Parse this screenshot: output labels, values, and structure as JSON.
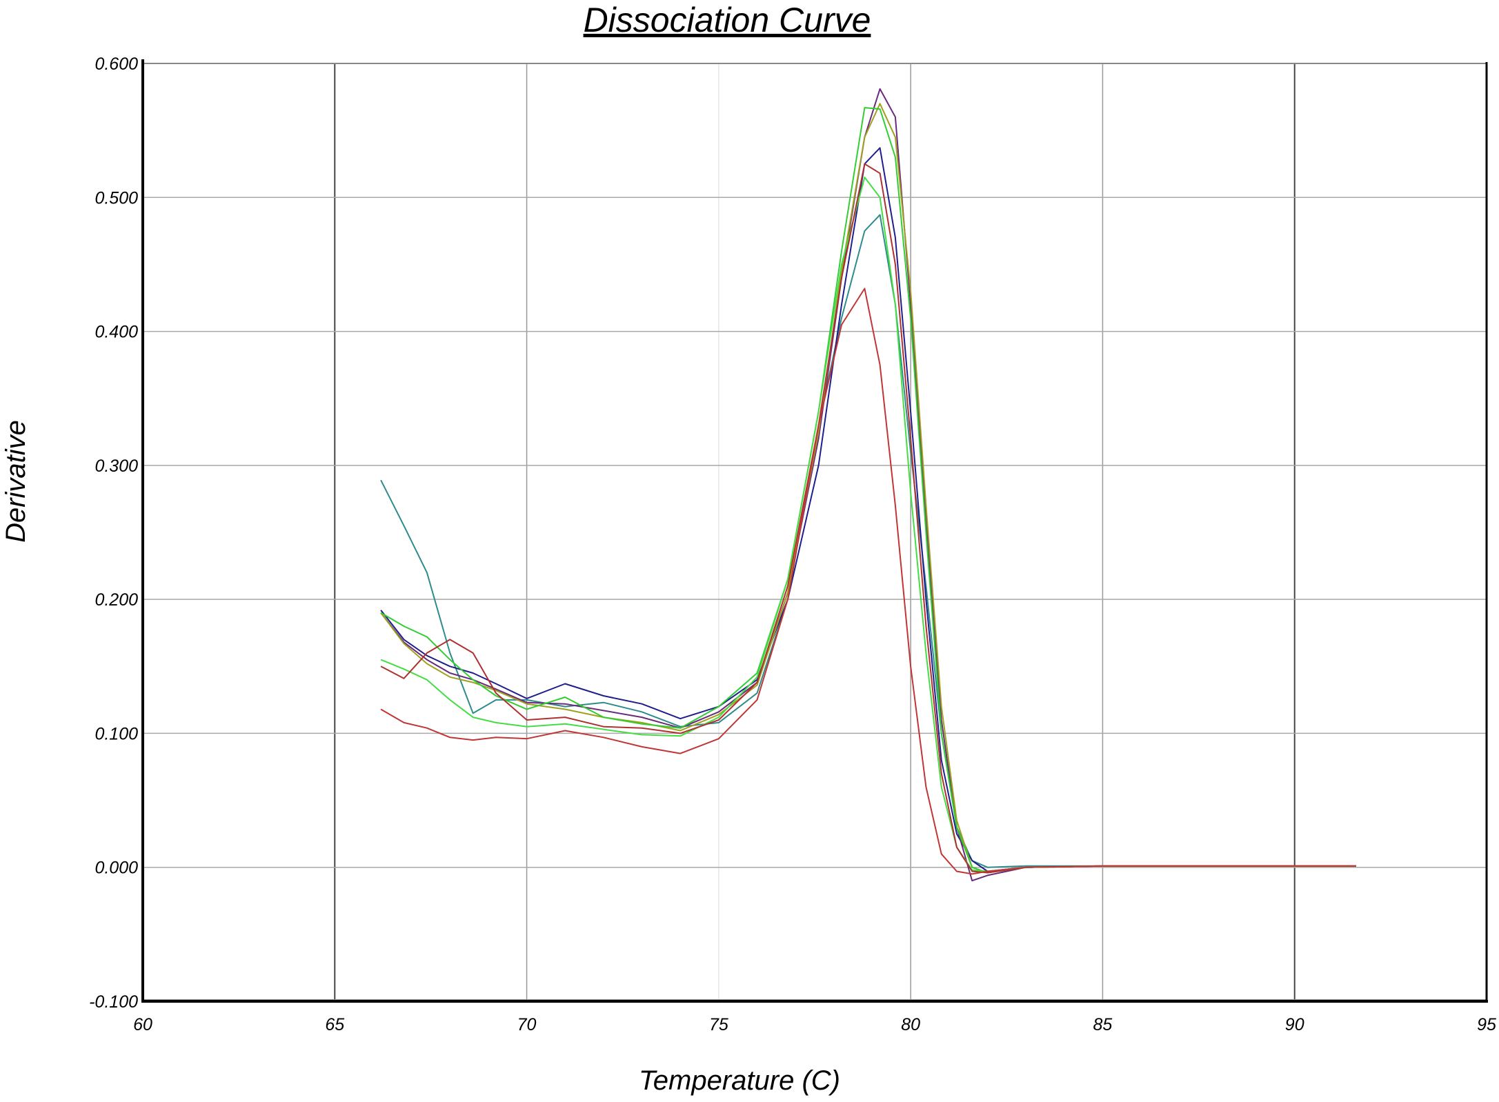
{
  "chart_data": {
    "type": "line",
    "title": "Dissociation Curve",
    "xlabel": "Temperature (C)",
    "ylabel": "Derivative",
    "xlim": [
      60,
      95
    ],
    "ylim": [
      -0.1,
      0.6
    ],
    "x_ticks": [
      "60",
      "65",
      "70",
      "75",
      "80",
      "85",
      "90",
      "95"
    ],
    "y_ticks": [
      "-0.100",
      "0.000",
      "0.100",
      "0.200",
      "0.300",
      "0.400",
      "0.500",
      "0.600"
    ],
    "grid": true,
    "legend": "none",
    "series": [
      {
        "color": "#2e8b8b",
        "x": [
          66.2,
          66.8,
          67.4,
          68.0,
          68.6,
          69.2,
          70.0,
          71.0,
          72.0,
          73.0,
          74.0,
          75.0,
          76.0,
          76.8,
          77.6,
          78.2,
          78.8,
          79.2,
          79.6,
          80.0,
          80.4,
          80.8,
          81.2,
          81.6,
          82.0,
          83.0,
          85.0,
          88.0,
          91.6
        ],
        "y": [
          0.289,
          0.255,
          0.22,
          0.16,
          0.115,
          0.125,
          0.125,
          0.12,
          0.123,
          0.116,
          0.105,
          0.108,
          0.13,
          0.2,
          0.33,
          0.41,
          0.475,
          0.487,
          0.42,
          0.31,
          0.21,
          0.1,
          0.03,
          0.005,
          0.0,
          0.001,
          0.001,
          0.001,
          0.001
        ]
      },
      {
        "color": "#1e1e8c",
        "x": [
          66.2,
          66.8,
          67.4,
          68.0,
          68.6,
          69.2,
          70.0,
          71.0,
          72.0,
          73.0,
          74.0,
          75.0,
          76.0,
          76.8,
          77.6,
          78.2,
          78.8,
          79.2,
          79.6,
          80.0,
          80.4,
          80.8,
          81.2,
          81.6,
          82.0,
          83.0,
          85.0,
          88.0,
          91.6
        ],
        "y": [
          0.192,
          0.17,
          0.158,
          0.15,
          0.145,
          0.137,
          0.126,
          0.137,
          0.128,
          0.122,
          0.111,
          0.12,
          0.14,
          0.2,
          0.3,
          0.42,
          0.525,
          0.537,
          0.47,
          0.34,
          0.2,
          0.08,
          0.025,
          0.005,
          -0.003,
          0.0,
          0.001,
          0.001,
          0.001
        ]
      },
      {
        "color": "#6a2a7a",
        "x": [
          66.2,
          66.8,
          67.4,
          68.0,
          68.6,
          69.2,
          70.0,
          71.0,
          72.0,
          73.0,
          74.0,
          75.0,
          76.0,
          76.8,
          77.6,
          78.2,
          78.8,
          79.2,
          79.6,
          80.0,
          80.4,
          80.8,
          81.2,
          81.6,
          82.0,
          83.0,
          85.0,
          88.0,
          91.6
        ],
        "y": [
          0.19,
          0.168,
          0.155,
          0.145,
          0.14,
          0.133,
          0.123,
          0.122,
          0.117,
          0.112,
          0.104,
          0.116,
          0.138,
          0.205,
          0.32,
          0.44,
          0.545,
          0.581,
          0.56,
          0.42,
          0.26,
          0.11,
          0.03,
          -0.01,
          -0.006,
          0.0,
          0.001,
          0.001,
          0.001
        ]
      },
      {
        "color": "#a0a020",
        "x": [
          66.2,
          66.8,
          67.4,
          68.0,
          68.6,
          69.2,
          70.0,
          71.0,
          72.0,
          73.0,
          74.0,
          75.0,
          76.0,
          76.8,
          77.6,
          78.2,
          78.8,
          79.2,
          79.6,
          80.0,
          80.4,
          80.8,
          81.2,
          81.6,
          82.0,
          83.0,
          85.0,
          88.0,
          91.6
        ],
        "y": [
          0.19,
          0.167,
          0.152,
          0.142,
          0.138,
          0.132,
          0.122,
          0.118,
          0.112,
          0.108,
          0.102,
          0.114,
          0.136,
          0.205,
          0.325,
          0.445,
          0.545,
          0.57,
          0.545,
          0.43,
          0.27,
          0.12,
          0.035,
          0.0,
          -0.004,
          0.0,
          0.001,
          0.001,
          0.001
        ]
      },
      {
        "color": "#33cc33",
        "x": [
          66.2,
          66.8,
          67.4,
          68.0,
          68.6,
          69.2,
          70.0,
          71.0,
          72.0,
          73.0,
          74.0,
          75.0,
          76.0,
          76.8,
          77.6,
          78.2,
          78.8,
          79.2,
          79.6,
          80.0,
          80.4,
          80.8,
          81.2,
          81.6,
          82.0,
          83.0,
          85.0,
          88.0,
          91.6
        ],
        "y": [
          0.19,
          0.18,
          0.172,
          0.155,
          0.14,
          0.128,
          0.118,
          0.127,
          0.112,
          0.107,
          0.104,
          0.12,
          0.145,
          0.215,
          0.34,
          0.46,
          0.567,
          0.566,
          0.53,
          0.41,
          0.25,
          0.1,
          0.03,
          0.0,
          -0.004,
          0.0,
          0.001,
          0.001,
          0.001
        ]
      },
      {
        "color": "#44dd44",
        "x": [
          66.2,
          66.8,
          67.4,
          68.0,
          68.6,
          69.2,
          70.0,
          71.0,
          72.0,
          73.0,
          74.0,
          75.0,
          76.0,
          76.8,
          77.6,
          78.2,
          78.8,
          79.2,
          79.6,
          80.0,
          80.4,
          80.8,
          81.2,
          81.6,
          82.0,
          83.0,
          85.0,
          88.0,
          91.6
        ],
        "y": [
          0.155,
          0.148,
          0.14,
          0.125,
          0.112,
          0.108,
          0.105,
          0.107,
          0.103,
          0.099,
          0.098,
          0.112,
          0.142,
          0.215,
          0.34,
          0.45,
          0.515,
          0.5,
          0.42,
          0.28,
          0.16,
          0.06,
          0.015,
          -0.002,
          -0.003,
          0.0,
          0.001,
          0.001,
          0.001
        ]
      },
      {
        "color": "#b03030",
        "x": [
          66.2,
          66.8,
          67.4,
          68.0,
          68.6,
          69.2,
          70.0,
          71.0,
          72.0,
          73.0,
          74.0,
          75.0,
          76.0,
          76.8,
          77.6,
          78.2,
          78.8,
          79.2,
          79.6,
          80.0,
          80.4,
          80.8,
          81.2,
          81.6,
          82.0,
          83.0,
          85.0,
          88.0,
          91.6
        ],
        "y": [
          0.15,
          0.141,
          0.16,
          0.17,
          0.16,
          0.13,
          0.11,
          0.112,
          0.105,
          0.104,
          0.1,
          0.11,
          0.138,
          0.21,
          0.33,
          0.44,
          0.525,
          0.518,
          0.45,
          0.32,
          0.18,
          0.07,
          0.015,
          -0.003,
          -0.004,
          0.0,
          0.001,
          0.001,
          0.001
        ]
      },
      {
        "color": "#c03535",
        "x": [
          66.2,
          66.8,
          67.4,
          68.0,
          68.6,
          69.2,
          70.0,
          71.0,
          72.0,
          73.0,
          74.0,
          75.0,
          76.0,
          76.8,
          77.6,
          78.2,
          78.8,
          79.2,
          79.6,
          80.0,
          80.4,
          80.8,
          81.2,
          81.6,
          82.0,
          83.0,
          85.0,
          88.0,
          91.6
        ],
        "y": [
          0.118,
          0.108,
          0.104,
          0.097,
          0.095,
          0.097,
          0.096,
          0.102,
          0.097,
          0.09,
          0.085,
          0.096,
          0.125,
          0.2,
          0.33,
          0.405,
          0.432,
          0.375,
          0.27,
          0.15,
          0.06,
          0.01,
          -0.003,
          -0.005,
          -0.003,
          0.0,
          0.001,
          0.001,
          0.001
        ]
      }
    ]
  }
}
